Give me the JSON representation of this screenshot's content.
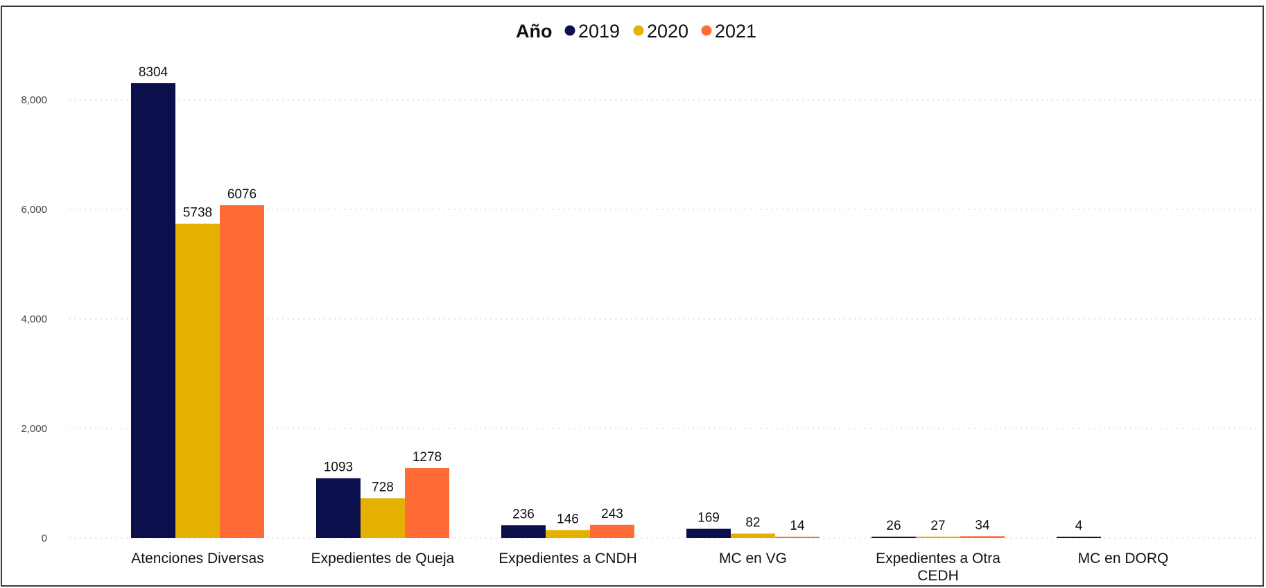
{
  "chart_data": {
    "type": "bar",
    "legend": {
      "title": "Año",
      "position": "top-center"
    },
    "categories": [
      "Atenciones Diversas",
      "Expedientes de Queja",
      "Expedientes a CNDH",
      "MC en VG",
      "Expedientes a Otra CEDH",
      "MC en DORQ"
    ],
    "series": [
      {
        "name": "2019",
        "color": "#0b0f4c",
        "values": [
          8304,
          1093,
          236,
          169,
          26,
          4
        ]
      },
      {
        "name": "2020",
        "color": "#e6b000",
        "values": [
          5738,
          728,
          146,
          82,
          27,
          null
        ]
      },
      {
        "name": "2021",
        "color": "#ff6b35",
        "values": [
          6076,
          1278,
          243,
          14,
          34,
          null
        ]
      }
    ],
    "y_ticks": [
      "0",
      "2,000",
      "4,000",
      "6,000",
      "8,000"
    ],
    "ylim": [
      0,
      8800
    ],
    "grid": true,
    "xlabel": "",
    "ylabel": ""
  }
}
